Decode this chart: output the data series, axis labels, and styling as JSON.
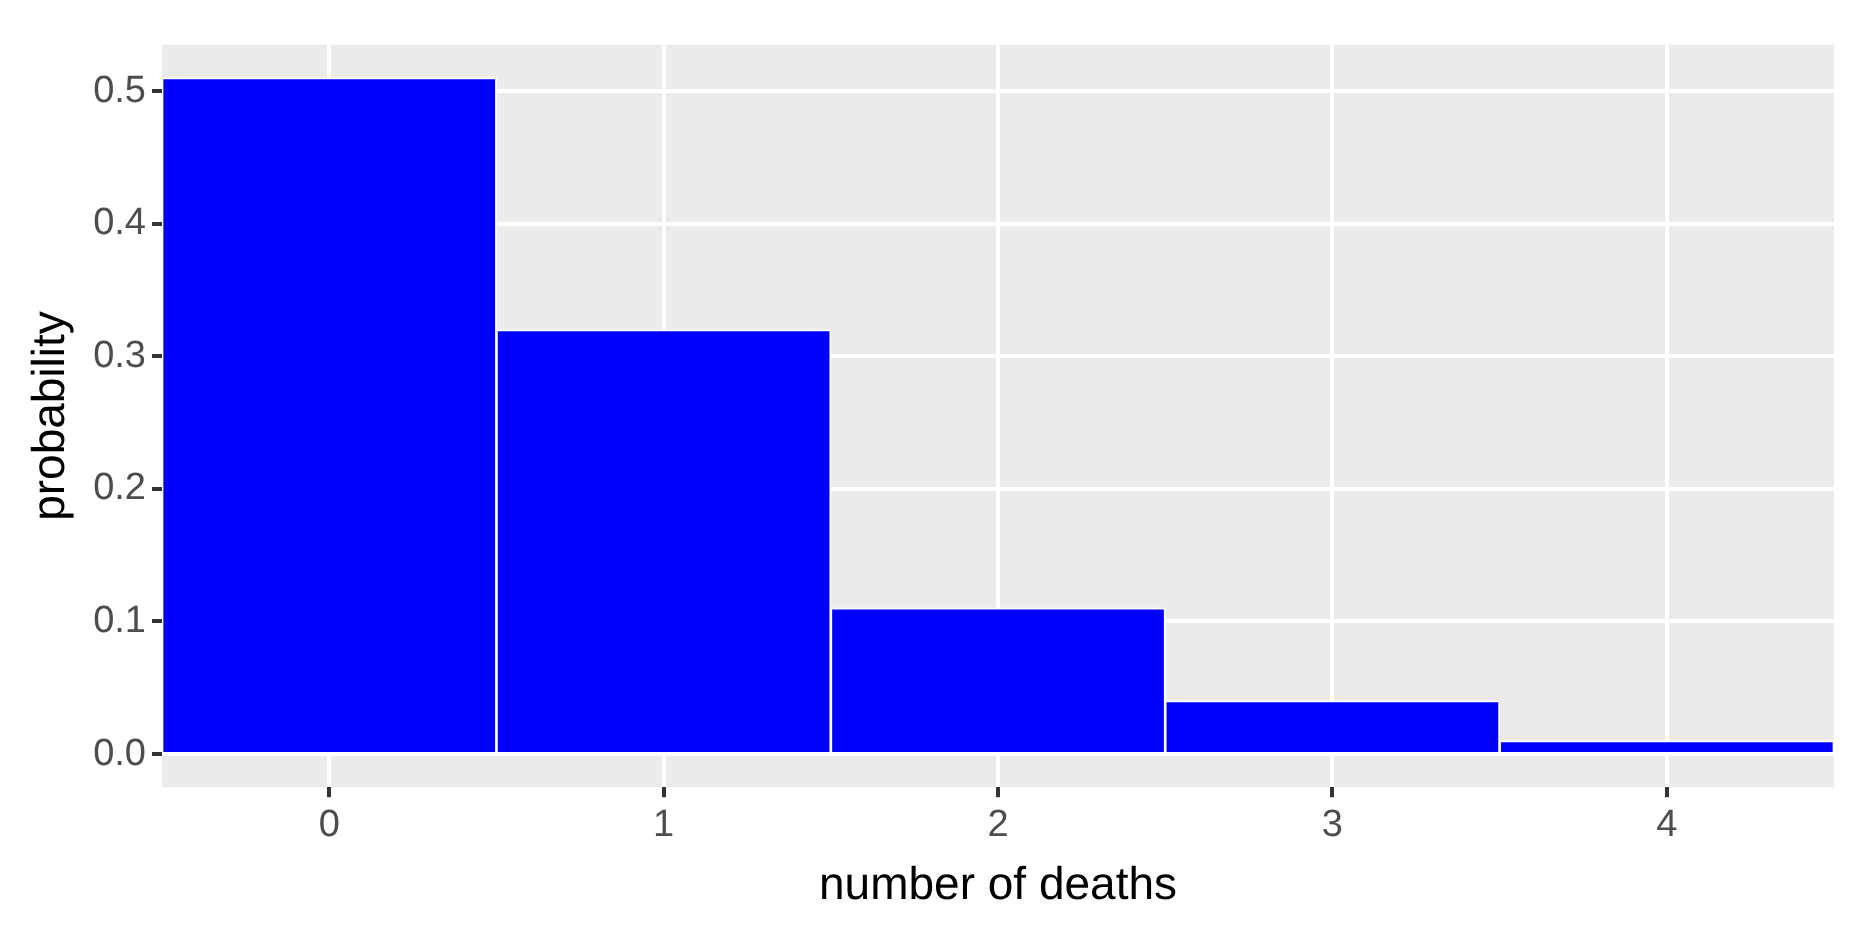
{
  "chart_data": {
    "type": "bar",
    "xlabel": "number of deaths",
    "ylabel": "probability",
    "categories": [
      "0",
      "1",
      "2",
      "3",
      "4"
    ],
    "values": [
      0.51,
      0.32,
      0.11,
      0.04,
      0.01
    ],
    "color": "#0000ff",
    "ylim": [
      -0.025,
      0.535
    ],
    "yticks": [
      {
        "value": 0,
        "label": "0.0"
      },
      0.1,
      0.2,
      0.3,
      0.4,
      0.5
    ],
    "grid": true,
    "legend": false
  }
}
